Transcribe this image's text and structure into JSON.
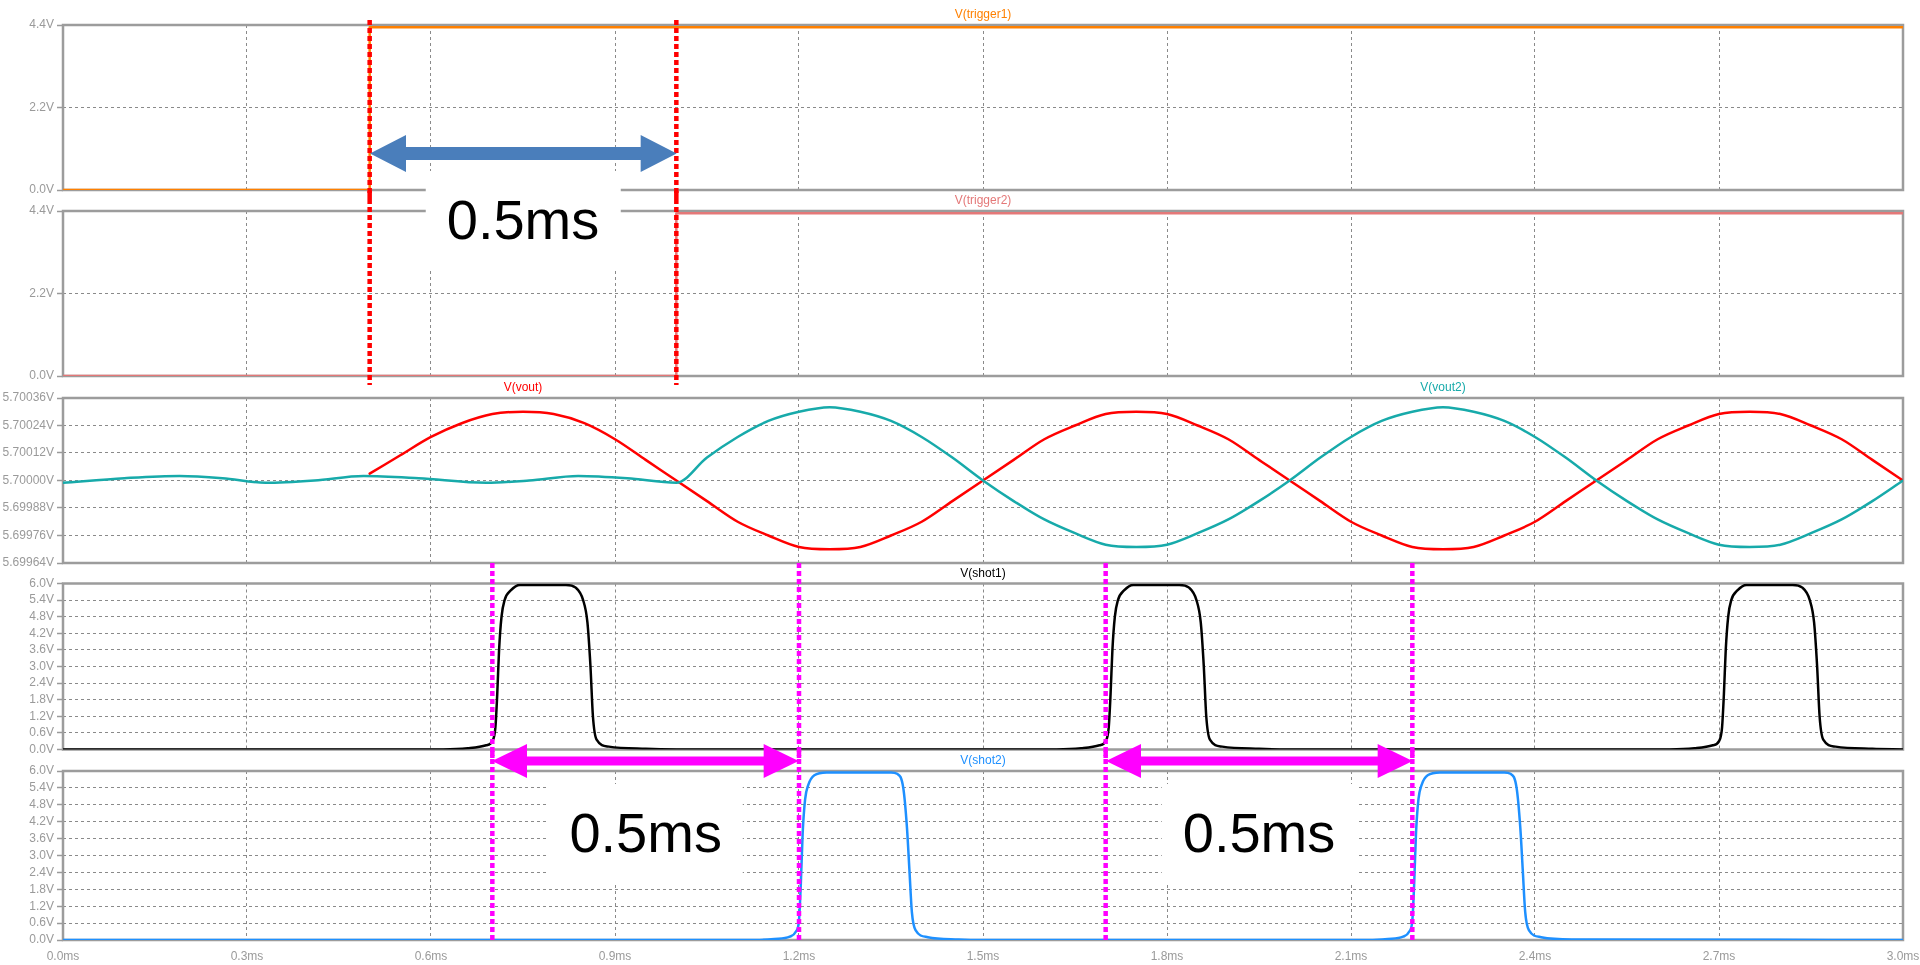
{
  "chart_data": [
    {
      "type": "line",
      "xlim": [
        0,
        3
      ],
      "xticks": [
        {
          "value": 0,
          "label": null
        },
        {
          "value": 0.3,
          "label": null
        },
        {
          "value": 0.6,
          "label": null
        },
        {
          "value": 0.9,
          "label": null
        },
        {
          "value": 1.2,
          "label": null
        },
        {
          "value": 1.5,
          "label": null
        },
        {
          "value": 1.8,
          "label": null
        },
        {
          "value": 2.1,
          "label": null
        },
        {
          "value": 2.4,
          "label": null
        },
        {
          "value": 2.7,
          "label": null
        },
        {
          "value": 3,
          "label": null
        }
      ],
      "ylim": [
        0,
        4.4
      ],
      "yticks": [
        {
          "value": 0,
          "label": "0.0V"
        },
        {
          "value": 2.2,
          "label": "2.2V"
        },
        {
          "value": 4.4,
          "label": "4.4V"
        }
      ],
      "tick_labels": "y",
      "grid": true,
      "legend": "top",
      "series": [
        {
          "name": "V(trigger1)",
          "color": "#ff8000",
          "x": [
            0,
            0.5,
            0.5,
            3
          ],
          "values": [
            0,
            0,
            4.34,
            4.34
          ]
        }
      ],
      "ref_lines": [
        {
          "axis": "x",
          "value": 0.5,
          "color": "#ff0000",
          "line_style": "dotted"
        },
        {
          "axis": "x",
          "value": 1,
          "color": "#ff0000",
          "line_style": "dotted"
        }
      ]
    },
    {
      "type": "line",
      "xlim": [
        0,
        3
      ],
      "xticks": [
        {
          "value": 0,
          "label": null
        },
        {
          "value": 0.3,
          "label": null
        },
        {
          "value": 0.6,
          "label": null
        },
        {
          "value": 0.9,
          "label": null
        },
        {
          "value": 1.2,
          "label": null
        },
        {
          "value": 1.5,
          "label": null
        },
        {
          "value": 1.8,
          "label": null
        },
        {
          "value": 2.1,
          "label": null
        },
        {
          "value": 2.4,
          "label": null
        },
        {
          "value": 2.7,
          "label": null
        },
        {
          "value": 3,
          "label": null
        }
      ],
      "ylim": [
        0,
        4.4
      ],
      "yticks": [
        {
          "value": 0,
          "label": "0.0V"
        },
        {
          "value": 2.2,
          "label": "2.2V"
        },
        {
          "value": 4.4,
          "label": "4.4V"
        }
      ],
      "tick_labels": "y",
      "grid": true,
      "legend": "top",
      "series": [
        {
          "name": "V(trigger2)",
          "color": "#e47878",
          "x": [
            0,
            1,
            1,
            3
          ],
          "values": [
            0,
            0,
            4.34,
            4.34
          ]
        }
      ],
      "ref_lines": [
        {
          "axis": "x",
          "value": 0.5,
          "color": "#ff0000",
          "line_style": "dotted"
        },
        {
          "axis": "x",
          "value": 1,
          "color": "#ff0000",
          "line_style": "dotted"
        }
      ],
      "annotations": [
        "0.5ms"
      ]
    },
    {
      "type": "line",
      "xlim": [
        0,
        3
      ],
      "xticks": [
        {
          "value": 0,
          "label": null
        },
        {
          "value": 0.3,
          "label": null
        },
        {
          "value": 0.6,
          "label": null
        },
        {
          "value": 0.9,
          "label": null
        },
        {
          "value": 1.2,
          "label": null
        },
        {
          "value": 1.5,
          "label": null
        },
        {
          "value": 1.8,
          "label": null
        },
        {
          "value": 2.1,
          "label": null
        },
        {
          "value": 2.4,
          "label": null
        },
        {
          "value": 2.7,
          "label": null
        },
        {
          "value": 3,
          "label": null
        }
      ],
      "ylim": [
        5.69964,
        5.70036
      ],
      "yticks": [
        {
          "value": 5.69964,
          "label": "5.69964V"
        },
        {
          "value": 5.69976,
          "label": "5.69976V"
        },
        {
          "value": 5.69988,
          "label": "5.69988V"
        },
        {
          "value": 5.7,
          "label": "5.70000V"
        },
        {
          "value": 5.70012,
          "label": "5.70012V"
        },
        {
          "value": 5.70024,
          "label": "5.70024V"
        },
        {
          "value": 5.70036,
          "label": "5.70036V"
        }
      ],
      "tick_labels": "y",
      "grid": true,
      "legend": "top",
      "series": [
        {
          "name": "V(vout)",
          "color": "#ff0000",
          "x": [
            0.5,
            0.55,
            0.6,
            0.65,
            0.7,
            0.75,
            0.8,
            0.85,
            0.9,
            0.95,
            1,
            1.05,
            1.1,
            1.15,
            1.2,
            1.25,
            1.3,
            1.35,
            1.4,
            1.45,
            1.5,
            1.55,
            1.6,
            1.65,
            1.7,
            1.75,
            1.8,
            1.85,
            1.9,
            1.95,
            2,
            2.05,
            2.1,
            2.15,
            2.2,
            2.25,
            2.3,
            2.35,
            2.4,
            2.45,
            2.5,
            2.55,
            2.6,
            2.65,
            2.7,
            2.75,
            2.8,
            2.85,
            2.9,
            2.95,
            3
          ],
          "values": [
            5.70003,
            5.70011,
            5.70019,
            5.70025,
            5.70029,
            5.7003,
            5.70029,
            5.70025,
            5.70018,
            5.70009,
            5.7,
            5.69991,
            5.69982,
            5.69976,
            5.69971,
            5.6997,
            5.69971,
            5.69976,
            5.69982,
            5.69991,
            5.7,
            5.70009,
            5.70018,
            5.70024,
            5.70029,
            5.7003,
            5.70029,
            5.70024,
            5.70018,
            5.70009,
            5.7,
            5.69991,
            5.69982,
            5.69976,
            5.69971,
            5.6997,
            5.69971,
            5.69976,
            5.69982,
            5.69991,
            5.7,
            5.70009,
            5.70018,
            5.70024,
            5.70029,
            5.7003,
            5.70029,
            5.70024,
            5.70018,
            5.70009,
            5.7
          ]
        },
        {
          "name": "V(vout2)",
          "color": "#17aaaa",
          "x": [
            0,
            0.1,
            0.19,
            0.26,
            0.33,
            0.41,
            0.49,
            0.58,
            0.69,
            0.76,
            0.84,
            0.92,
            1,
            1.05,
            1.1,
            1.15,
            1.2,
            1.25,
            1.3,
            1.35,
            1.4,
            1.45,
            1.5,
            1.55,
            1.6,
            1.65,
            1.7,
            1.75,
            1.8,
            1.85,
            1.9,
            1.95,
            2,
            2.05,
            2.1,
            2.15,
            2.2,
            2.25,
            2.3,
            2.35,
            2.4,
            2.45,
            2.5,
            2.55,
            2.6,
            2.65,
            2.7,
            2.75,
            2.8,
            2.85,
            2.9,
            2.95,
            3
          ],
          "values": [
            5.69999,
            5.70001,
            5.70002,
            5.70001,
            5.69999,
            5.7,
            5.70002,
            5.70001,
            5.69999,
            5.7,
            5.70002,
            5.70001,
            5.69999,
            5.7001,
            5.70019,
            5.70026,
            5.7003,
            5.70032,
            5.7003,
            5.70026,
            5.70019,
            5.7001,
            5.7,
            5.69991,
            5.69983,
            5.69977,
            5.69972,
            5.69971,
            5.69972,
            5.69977,
            5.69983,
            5.69991,
            5.7,
            5.7001,
            5.70019,
            5.70026,
            5.7003,
            5.70032,
            5.7003,
            5.70026,
            5.70019,
            5.7001,
            5.7,
            5.69991,
            5.69983,
            5.69977,
            5.69972,
            5.69971,
            5.69972,
            5.69977,
            5.69983,
            5.69991,
            5.7
          ]
        }
      ]
    },
    {
      "type": "line",
      "xlim": [
        0,
        3
      ],
      "xticks": [
        {
          "value": 0,
          "label": null
        },
        {
          "value": 0.3,
          "label": null
        },
        {
          "value": 0.6,
          "label": null
        },
        {
          "value": 0.9,
          "label": null
        },
        {
          "value": 1.2,
          "label": null
        },
        {
          "value": 1.5,
          "label": null
        },
        {
          "value": 1.8,
          "label": null
        },
        {
          "value": 2.1,
          "label": null
        },
        {
          "value": 2.4,
          "label": null
        },
        {
          "value": 2.7,
          "label": null
        },
        {
          "value": 3,
          "label": null
        }
      ],
      "ylim": [
        0,
        6
      ],
      "yticks": [
        {
          "value": 0,
          "label": "0.0V"
        },
        {
          "value": 0.6,
          "label": "0.6V"
        },
        {
          "value": 1.2,
          "label": "1.2V"
        },
        {
          "value": 1.8,
          "label": "1.8V"
        },
        {
          "value": 2.4,
          "label": "2.4V"
        },
        {
          "value": 3,
          "label": "3.0V"
        },
        {
          "value": 3.6,
          "label": "3.6V"
        },
        {
          "value": 4.2,
          "label": "4.2V"
        },
        {
          "value": 4.8,
          "label": "4.8V"
        },
        {
          "value": 5.4,
          "label": "5.4V"
        },
        {
          "value": 6,
          "label": "6.0V"
        }
      ],
      "tick_labels": "y",
      "grid": true,
      "legend": "top",
      "series": [
        {
          "name": "V(shot1)",
          "color": "#000000",
          "x": [
            0,
            0.62,
            0.66,
            0.69,
            0.7,
            0.705,
            0.708,
            0.711,
            0.715,
            0.72,
            0.73,
            0.745,
            0.82,
            0.836,
            0.848,
            0.855,
            0.86,
            0.864,
            0.87,
            0.89,
            0.95,
            1,
            1.62,
            1.66,
            1.69,
            1.7,
            1.705,
            1.708,
            1.711,
            1.715,
            1.72,
            1.73,
            1.745,
            1.82,
            1.836,
            1.848,
            1.855,
            1.86,
            1.864,
            1.87,
            1.89,
            1.95,
            2,
            2.62,
            2.66,
            2.69,
            2.7,
            2.705,
            2.708,
            2.711,
            2.715,
            2.72,
            2.73,
            2.745,
            2.82,
            2.836,
            2.848,
            2.855,
            2.86,
            2.864,
            2.87,
            2.89,
            2.95,
            3
          ],
          "values": [
            0,
            0,
            0.04,
            0.15,
            0.3,
            0.8,
            2,
            3.6,
            4.8,
            5.4,
            5.75,
            5.95,
            5.95,
            5.85,
            5.4,
            4.6,
            3,
            1.2,
            0.35,
            0.1,
            0.02,
            0,
            0,
            0.04,
            0.15,
            0.3,
            0.8,
            2,
            3.6,
            4.8,
            5.4,
            5.75,
            5.95,
            5.95,
            5.85,
            5.4,
            4.6,
            3,
            1.2,
            0.35,
            0.1,
            0.02,
            0,
            0,
            0.04,
            0.15,
            0.3,
            0.8,
            2,
            3.6,
            4.8,
            5.4,
            5.75,
            5.95,
            5.95,
            5.85,
            5.4,
            4.6,
            3,
            1.2,
            0.35,
            0.1,
            0.02,
            0
          ]
        }
      ],
      "ref_lines": [
        {
          "axis": "x",
          "value": 0.7,
          "color": "#ff00ff",
          "line_style": "dotted"
        },
        {
          "axis": "x",
          "value": 1.2,
          "color": "#ff00ff",
          "line_style": "dotted"
        },
        {
          "axis": "x",
          "value": 1.7,
          "color": "#ff00ff",
          "line_style": "dotted"
        },
        {
          "axis": "x",
          "value": 2.2,
          "color": "#ff00ff",
          "line_style": "dotted"
        }
      ]
    },
    {
      "type": "line",
      "xlim": [
        0,
        3
      ],
      "xticks": [
        {
          "value": 0,
          "label": "0.0ms"
        },
        {
          "value": 0.3,
          "label": "0.3ms"
        },
        {
          "value": 0.6,
          "label": "0.6ms"
        },
        {
          "value": 0.9,
          "label": "0.9ms"
        },
        {
          "value": 1.2,
          "label": "1.2ms"
        },
        {
          "value": 1.5,
          "label": "1.5ms"
        },
        {
          "value": 1.8,
          "label": "1.8ms"
        },
        {
          "value": 2.1,
          "label": "2.1ms"
        },
        {
          "value": 2.4,
          "label": "2.4ms"
        },
        {
          "value": 2.7,
          "label": "2.7ms"
        },
        {
          "value": 3,
          "label": "3.0ms"
        }
      ],
      "ylim": [
        0,
        6
      ],
      "yticks": [
        {
          "value": 0,
          "label": "0.0V"
        },
        {
          "value": 0.6,
          "label": "0.6V"
        },
        {
          "value": 1.2,
          "label": "1.2V"
        },
        {
          "value": 1.8,
          "label": "1.8V"
        },
        {
          "value": 2.4,
          "label": "2.4V"
        },
        {
          "value": 3,
          "label": "3.0V"
        },
        {
          "value": 3.6,
          "label": "3.6V"
        },
        {
          "value": 4.2,
          "label": "4.2V"
        },
        {
          "value": 4.8,
          "label": "4.8V"
        },
        {
          "value": 5.4,
          "label": "5.4V"
        },
        {
          "value": 6,
          "label": "6.0V"
        }
      ],
      "grid": true,
      "legend": "top",
      "series": [
        {
          "name": "V(shot2)",
          "color": "#1e90ff",
          "x": [
            0,
            1.13,
            1.16,
            1.185,
            1.195,
            1.2,
            1.203,
            1.206,
            1.21,
            1.215,
            1.225,
            1.245,
            1.35,
            1.36,
            1.37,
            1.376,
            1.38,
            1.384,
            1.39,
            1.41,
            1.46,
            1.5,
            2.13,
            2.16,
            2.185,
            2.195,
            2.2,
            2.203,
            2.206,
            2.21,
            2.215,
            2.225,
            2.245,
            2.35,
            2.36,
            2.37,
            2.376,
            2.38,
            2.384,
            2.39,
            2.41,
            2.46,
            3
          ],
          "values": [
            0,
            0,
            0.04,
            0.12,
            0.3,
            0.7,
            2,
            3.8,
            5,
            5.5,
            5.85,
            5.95,
            5.95,
            5.9,
            5.4,
            4,
            2.5,
            1,
            0.35,
            0.1,
            0.02,
            0,
            0,
            0.04,
            0.12,
            0.3,
            0.7,
            2,
            3.8,
            5,
            5.5,
            5.85,
            5.95,
            5.95,
            5.9,
            5.4,
            4,
            2.5,
            1,
            0.35,
            0.1,
            0.02,
            0
          ]
        }
      ],
      "ref_lines": [
        {
          "axis": "x",
          "value": 0.7,
          "color": "#ff00ff",
          "line_style": "dotted"
        },
        {
          "axis": "x",
          "value": 1.2,
          "color": "#ff00ff",
          "line_style": "dotted"
        },
        {
          "axis": "x",
          "value": 1.7,
          "color": "#ff00ff",
          "line_style": "dotted"
        },
        {
          "axis": "x",
          "value": 2.2,
          "color": "#ff00ff",
          "line_style": "dotted"
        }
      ],
      "annotations": [
        "0.5ms",
        "0.5ms"
      ]
    }
  ]
}
